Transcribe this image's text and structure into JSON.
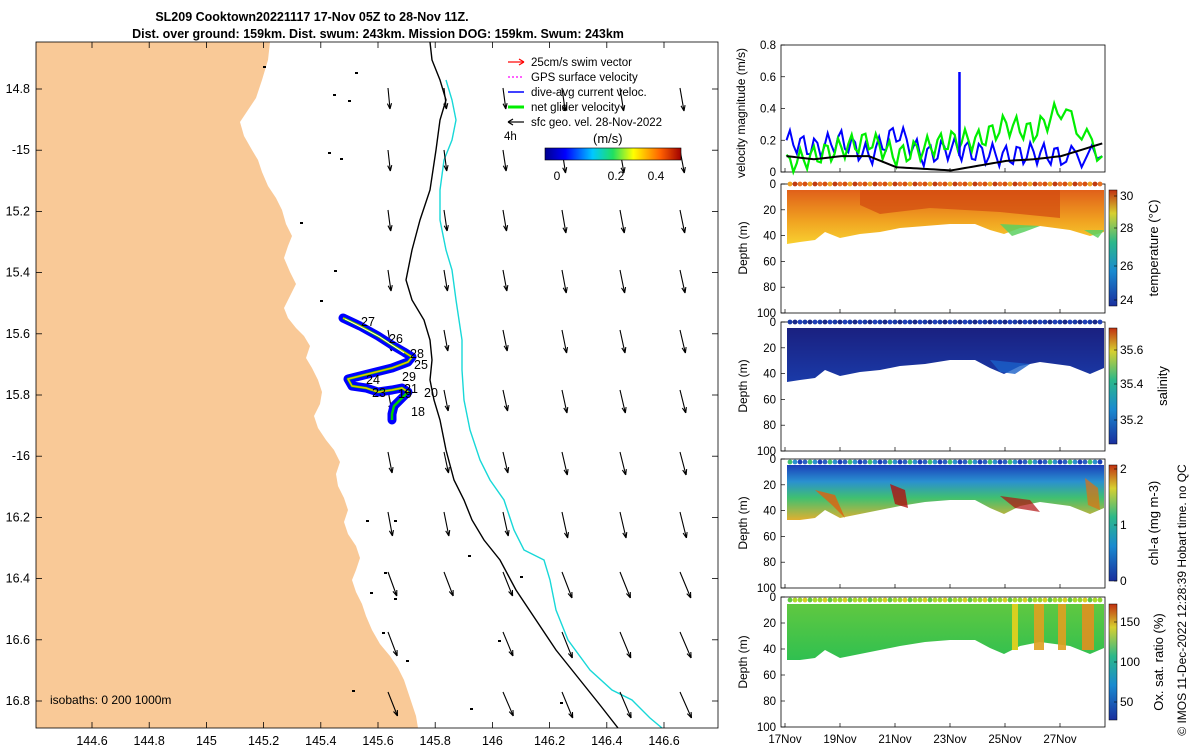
{
  "title": {
    "line1": "SL209 Cooktown20221117 17-Nov 05Z to 28-Nov 11Z.",
    "line2": "Dist. over ground: 159km. Dist. swum: 243km. Mission DOG: 159km. Swum: 243km"
  },
  "map": {
    "lon_ticks": [
      "144.6",
      "144.8",
      "145",
      "145.2",
      "145.4",
      "145.6",
      "145.8",
      "146",
      "146.2",
      "146.4",
      "146.6"
    ],
    "lat_ticks": [
      "14.8",
      "-15",
      "15.2",
      "15.4",
      "15.6",
      "15.8",
      "-16",
      "16.2",
      "16.4",
      "16.6",
      "16.8"
    ],
    "legend": [
      {
        "label": "25cm/s swim vector",
        "color": "#ff0000",
        "style": "arrow"
      },
      {
        "label": "GPS surface velocity",
        "color": "#ff00ff",
        "style": "dotted"
      },
      {
        "label": "dive-avg current veloc.",
        "color": "#0000ff",
        "style": "line"
      },
      {
        "label": "net glider velocity",
        "color": "#00ee00",
        "style": "thick"
      },
      {
        "label": "sfc geo. vel. 28-Nov-2022",
        "color": "#000000",
        "style": "arrow"
      }
    ],
    "interval_label": "4h",
    "colorbar": {
      "unit": "(m/s)",
      "ticks": [
        "0",
        "0.2",
        "0.4"
      ]
    },
    "isobaths_label": "isobaths: 0   200  1000m",
    "day_labels": [
      "27",
      "26",
      "28",
      "25",
      "29",
      "24",
      "23",
      "21",
      "19",
      "20",
      "18"
    ],
    "land_color": "#f9c997"
  },
  "panels": [
    {
      "ylabel": "velocity magnitude (m/s)",
      "yticks": [
        "0",
        "0.2",
        "0.4",
        "0.6",
        "0.8"
      ],
      "series": [
        {
          "name": "dive-avg current",
          "color": "#0000ff"
        },
        {
          "name": "net glider velocity",
          "color": "#00ee00"
        },
        {
          "name": "sfc geo. vel.",
          "color": "#000000"
        }
      ]
    },
    {
      "ylabel": "Depth (m)",
      "yticks": [
        "0",
        "20",
        "40",
        "60",
        "80",
        "100"
      ],
      "cbar_label": "temperature (°C)",
      "cbar_ticks": [
        "30",
        "28",
        "26",
        "24"
      ]
    },
    {
      "ylabel": "Depth (m)",
      "yticks": [
        "0",
        "20",
        "40",
        "60",
        "80",
        "100"
      ],
      "cbar_label": "salinity",
      "cbar_ticks": [
        "35.6",
        "35.4",
        "35.2"
      ]
    },
    {
      "ylabel": "Depth (m)",
      "yticks": [
        "0",
        "20",
        "40",
        "60",
        "80",
        "100"
      ],
      "cbar_label": "chl-a (mg m-3)",
      "cbar_ticks": [
        "2",
        "1",
        "0"
      ]
    },
    {
      "ylabel": "Depth (m)",
      "yticks": [
        "0",
        "20",
        "40",
        "60",
        "80",
        "100"
      ],
      "cbar_label": "Ox. sat. ratio (%)",
      "cbar_ticks": [
        "150",
        "100",
        "50"
      ]
    }
  ],
  "time_axis": {
    "ticks": [
      "17Nov",
      "19Nov",
      "21Nov",
      "23Nov",
      "25Nov",
      "27Nov"
    ]
  },
  "credit": "© IMOS 11-Dec-2022 12:28:39 Hobart time. no QC",
  "chart_data": [
    {
      "type": "scatter",
      "title": "SL209 Cooktown20221117 17-Nov 05Z to 28-Nov 11Z.",
      "xlabel": "longitude",
      "ylabel": "latitude",
      "xlim": [
        144.4,
        146.7
      ],
      "ylim": [
        -16.87,
        -14.65
      ],
      "track": {
        "lon": [
          145.49,
          145.56,
          145.62,
          145.66,
          145.7,
          145.68,
          145.62,
          145.55,
          145.49,
          145.5,
          145.55,
          145.62,
          145.66,
          145.64,
          145.62,
          145.6
        ],
        "lat": [
          -15.57,
          -15.6,
          -15.64,
          -15.67,
          -15.7,
          -15.72,
          -15.74,
          -15.75,
          -15.76,
          -15.79,
          -15.81,
          -15.8,
          -15.8,
          -15.84,
          -15.86,
          -15.88
        ]
      },
      "wind_arrow_columns_lon": [
        145.6,
        145.8,
        146.0,
        146.2,
        146.4,
        146.6
      ]
    },
    {
      "type": "line",
      "ylabel": "velocity magnitude (m/s)",
      "ylim": [
        0,
        0.8
      ],
      "x": [
        17,
        18,
        19,
        20,
        21,
        22,
        23,
        24,
        25,
        26,
        27,
        28.5
      ],
      "series": [
        {
          "name": "dive-avg current veloc.",
          "values": [
            0.2,
            0.15,
            0.2,
            0.1,
            0.25,
            0.1,
            0.15,
            0.12,
            0.1,
            0.12,
            0.1,
            0.1
          ]
        },
        {
          "name": "net glider velocity",
          "values": [
            0.05,
            0.1,
            0.15,
            0.2,
            0.1,
            0.15,
            0.2,
            0.2,
            0.3,
            0.25,
            0.4,
            0.1
          ]
        },
        {
          "name": "sfc geo. vel.",
          "values": [
            0.1,
            0.08,
            0.1,
            0.1,
            0.03,
            0.02,
            0.01,
            0.04,
            0.07,
            0.08,
            0.1,
            0.18
          ]
        }
      ],
      "spike": {
        "x": 23.3,
        "y": 0.63
      }
    },
    {
      "type": "heatmap",
      "name": "temperature",
      "xlim": [
        17,
        28.5
      ],
      "ylim": [
        100,
        0
      ],
      "clim": [
        23.5,
        30.5
      ]
    },
    {
      "type": "heatmap",
      "name": "salinity",
      "xlim": [
        17,
        28.5
      ],
      "ylim": [
        100,
        0
      ],
      "clim": [
        35.1,
        35.7
      ]
    },
    {
      "type": "heatmap",
      "name": "chl-a",
      "xlim": [
        17,
        28.5
      ],
      "ylim": [
        100,
        0
      ],
      "clim": [
        0,
        2
      ]
    },
    {
      "type": "heatmap",
      "name": "Ox. sat. ratio",
      "xlim": [
        17,
        28.5
      ],
      "ylim": [
        100,
        0
      ],
      "clim": [
        25,
        175
      ]
    }
  ]
}
